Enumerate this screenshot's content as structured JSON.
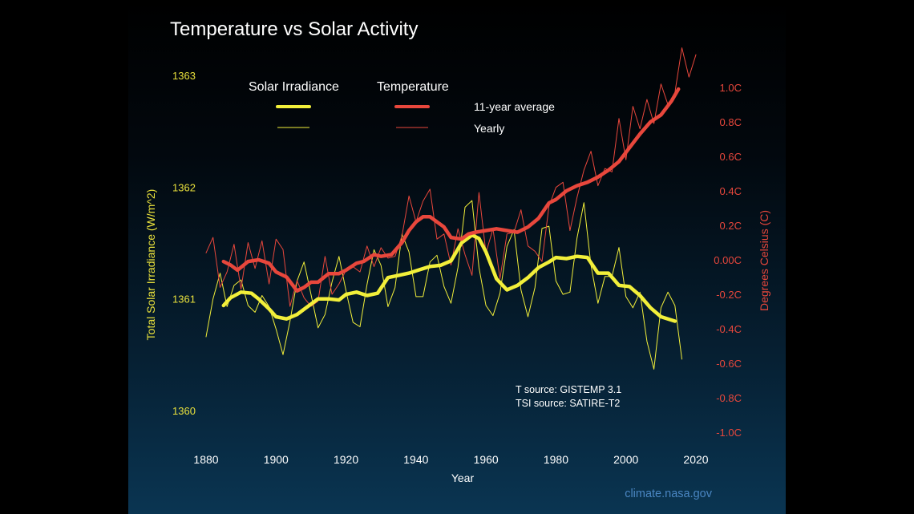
{
  "chart_data": {
    "type": "line",
    "title": "Temperature vs Solar Activity",
    "xlabel": "Year",
    "ylabel_left": "Total Solar Irradiance (W/m^2)",
    "ylabel_right": "Degrees Celsius (C)",
    "xlim": [
      1880,
      2020
    ],
    "ylim_left": [
      1360,
      1363
    ],
    "ylim_right": [
      -1.0,
      1.0
    ],
    "x_ticks": [
      "1880",
      "1900",
      "1920",
      "1940",
      "1960",
      "1980",
      "2000",
      "2020"
    ],
    "y_left_ticks": [
      "1360",
      "1361",
      "1362",
      "1363"
    ],
    "y_right_ticks": [
      "-1.0C",
      "-0.8C",
      "-0.6C",
      "-0.4C",
      "-0.2C",
      "0.00C",
      "0.2C",
      "0.4C",
      "0.6C",
      "0.8C",
      "1.0C"
    ],
    "legend": {
      "solar_header": "Solar Irradiance",
      "temp_header": "Temperature",
      "avg_label": "11-year average",
      "yearly_label": "Yearly"
    },
    "sources": {
      "line1": "T source: GISTEMP 3.1",
      "line2": "TSI source: SATIRE-T2"
    },
    "credit": "climate.nasa.gov",
    "colors": {
      "solar": "#f2ef3a",
      "temp": "#e8473c",
      "solar_label": "#e9e13c",
      "temp_label": "#e8473c"
    },
    "series": [
      {
        "name": "Solar Irradiance 11-year average",
        "axis": "left",
        "x": [
          1885,
          1887,
          1890,
          1893,
          1895,
          1898,
          1900,
          1903,
          1906,
          1909,
          1912,
          1915,
          1918,
          1920,
          1923,
          1926,
          1929,
          1932,
          1935,
          1938,
          1941,
          1944,
          1947,
          1950,
          1953,
          1956,
          1958,
          1960,
          1963,
          1966,
          1969,
          1972,
          1975,
          1978,
          1980,
          1983,
          1986,
          1989,
          1992,
          1995,
          1998,
          2001,
          2004,
          2007,
          2010,
          2013,
          2014
        ],
        "y": [
          1360.94,
          1361.01,
          1361.06,
          1361.05,
          1361.0,
          1360.91,
          1360.84,
          1360.82,
          1360.86,
          1360.93,
          1361.0,
          1361.0,
          1360.99,
          1361.04,
          1361.06,
          1361.03,
          1361.05,
          1361.19,
          1361.21,
          1361.23,
          1361.26,
          1361.29,
          1361.3,
          1361.34,
          1361.5,
          1361.57,
          1361.54,
          1361.42,
          1361.18,
          1361.08,
          1361.12,
          1361.19,
          1361.28,
          1361.33,
          1361.37,
          1361.36,
          1361.38,
          1361.37,
          1361.23,
          1361.23,
          1361.12,
          1361.11,
          1361.03,
          1360.92,
          1360.84,
          1360.81,
          1360.8
        ]
      },
      {
        "name": "Solar Irradiance Yearly",
        "axis": "left",
        "x": [
          1880,
          1882,
          1884,
          1886,
          1888,
          1890,
          1892,
          1894,
          1896,
          1898,
          1900,
          1902,
          1904,
          1906,
          1908,
          1910,
          1912,
          1914,
          1916,
          1918,
          1920,
          1922,
          1924,
          1926,
          1928,
          1930,
          1932,
          1934,
          1936,
          1938,
          1940,
          1942,
          1944,
          1946,
          1948,
          1950,
          1952,
          1954,
          1956,
          1958,
          1960,
          1962,
          1964,
          1966,
          1968,
          1970,
          1972,
          1974,
          1976,
          1978,
          1980,
          1982,
          1984,
          1986,
          1988,
          1990,
          1992,
          1994,
          1996,
          1998,
          2000,
          2002,
          2004,
          2006,
          2008,
          2010,
          2012,
          2014,
          2016
        ],
        "y": [
          1360.66,
          1361.0,
          1361.23,
          1360.93,
          1361.12,
          1361.17,
          1360.94,
          1360.88,
          1361.03,
          1360.93,
          1360.73,
          1360.5,
          1360.8,
          1361.16,
          1361.33,
          1361.04,
          1360.74,
          1360.86,
          1361.15,
          1361.38,
          1361.07,
          1360.79,
          1360.75,
          1361.13,
          1361.44,
          1361.3,
          1360.93,
          1361.1,
          1361.58,
          1361.42,
          1361.02,
          1361.02,
          1361.33,
          1361.39,
          1361.11,
          1360.96,
          1361.28,
          1361.82,
          1361.88,
          1361.28,
          1360.94,
          1360.85,
          1361.05,
          1361.47,
          1361.62,
          1361.08,
          1360.84,
          1361.1,
          1361.63,
          1361.65,
          1361.16,
          1361.04,
          1361.06,
          1361.54,
          1361.86,
          1361.3,
          1360.96,
          1361.2,
          1361.2,
          1361.46,
          1361.02,
          1360.92,
          1361.06,
          1360.62,
          1360.37,
          1360.92,
          1361.06,
          1360.94,
          1360.46
        ]
      },
      {
        "name": "Temperature 11-year average",
        "axis": "right",
        "x": [
          1885,
          1887,
          1889,
          1892,
          1895,
          1898,
          1900,
          1903,
          1906,
          1908,
          1910,
          1912,
          1915,
          1918,
          1920,
          1923,
          1925,
          1928,
          1930,
          1933,
          1936,
          1938,
          1940,
          1942,
          1944,
          1946,
          1948,
          1950,
          1953,
          1955,
          1957,
          1960,
          1963,
          1966,
          1969,
          1972,
          1975,
          1978,
          1980,
          1983,
          1986,
          1989,
          1992,
          1995,
          1998,
          2001,
          2004,
          2007,
          2010,
          2013,
          2015
        ],
        "y": [
          -0.01,
          -0.03,
          -0.06,
          -0.01,
          0.0,
          -0.02,
          -0.07,
          -0.1,
          -0.18,
          -0.16,
          -0.13,
          -0.13,
          -0.08,
          -0.08,
          -0.06,
          -0.02,
          -0.01,
          0.03,
          0.02,
          0.03,
          0.1,
          0.17,
          0.22,
          0.25,
          0.25,
          0.22,
          0.19,
          0.13,
          0.12,
          0.15,
          0.16,
          0.17,
          0.18,
          0.17,
          0.16,
          0.19,
          0.24,
          0.33,
          0.35,
          0.4,
          0.43,
          0.45,
          0.48,
          0.52,
          0.57,
          0.65,
          0.73,
          0.8,
          0.84,
          0.92,
          0.99
        ]
      },
      {
        "name": "Temperature Yearly",
        "axis": "right",
        "x": [
          1880,
          1882,
          1884,
          1886,
          1888,
          1890,
          1892,
          1894,
          1896,
          1898,
          1900,
          1902,
          1904,
          1906,
          1908,
          1910,
          1912,
          1914,
          1916,
          1918,
          1920,
          1922,
          1924,
          1926,
          1928,
          1930,
          1932,
          1934,
          1936,
          1938,
          1940,
          1942,
          1944,
          1946,
          1948,
          1950,
          1952,
          1954,
          1956,
          1958,
          1960,
          1962,
          1964,
          1966,
          1968,
          1970,
          1972,
          1974,
          1976,
          1978,
          1980,
          1982,
          1984,
          1986,
          1988,
          1990,
          1992,
          1994,
          1996,
          1998,
          2000,
          2002,
          2004,
          2006,
          2008,
          2010,
          2012,
          2014,
          2016,
          2018,
          2020
        ],
        "y": [
          0.04,
          0.13,
          -0.16,
          -0.07,
          0.09,
          -0.17,
          0.1,
          -0.05,
          0.11,
          -0.14,
          0.12,
          0.06,
          -0.27,
          -0.12,
          -0.22,
          -0.27,
          -0.24,
          0.02,
          -0.2,
          -0.14,
          -0.06,
          -0.04,
          -0.07,
          0.08,
          -0.04,
          0.07,
          0.01,
          0.02,
          0.14,
          0.37,
          0.22,
          0.34,
          0.41,
          0.12,
          0.15,
          -0.03,
          0.18,
          0.03,
          -0.09,
          0.39,
          0.04,
          0.18,
          -0.11,
          0.15,
          0.16,
          0.29,
          0.08,
          0.05,
          -0.01,
          0.31,
          0.42,
          0.45,
          0.17,
          0.36,
          0.52,
          0.63,
          0.43,
          0.53,
          0.51,
          0.82,
          0.58,
          0.89,
          0.76,
          0.93,
          0.79,
          1.02,
          0.9,
          0.97,
          1.23,
          1.06,
          1.19
        ]
      }
    ]
  }
}
